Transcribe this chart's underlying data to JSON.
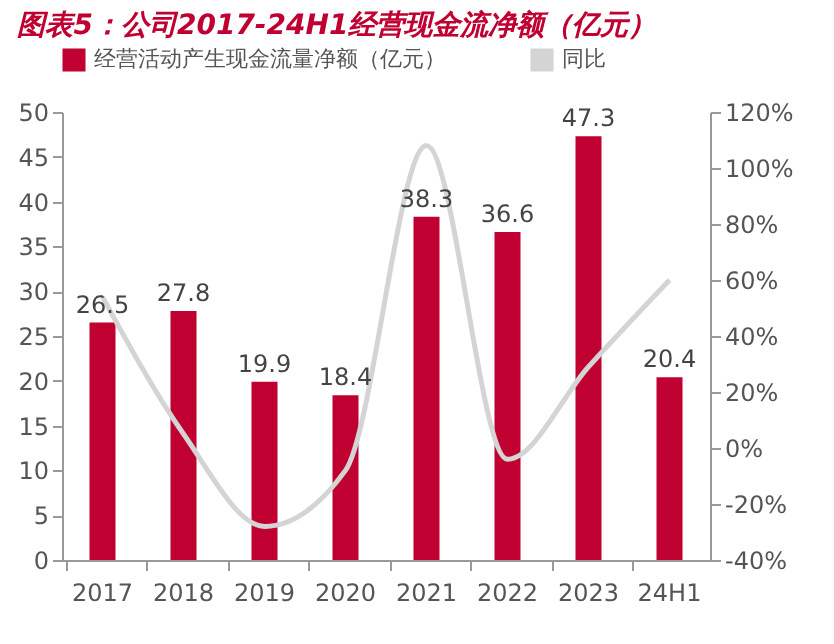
{
  "chart_data": {
    "type": "bar",
    "title": "图表5：公司2017-24H1经营现金流净额（亿元）",
    "categories": [
      "2017",
      "2018",
      "2019",
      "2020",
      "2021",
      "2022",
      "2023",
      "24H1"
    ],
    "series": [
      {
        "name": "经营活动产生现金流量净额（亿元）",
        "color": "#c00030",
        "values": [
          26.5,
          27.8,
          19.9,
          18.4,
          38.3,
          36.6,
          47.3,
          20.4
        ],
        "value_labels": [
          "26.5",
          "27.8",
          "19.9",
          "18.4",
          "38.3",
          "36.6",
          "47.3",
          "20.4"
        ]
      },
      {
        "name": "同比",
        "type": "line",
        "axis": "y2",
        "color": "#d4d4d4",
        "values": [
          54,
          5,
          -28,
          -8,
          108,
          -4,
          29,
          60
        ]
      }
    ],
    "ylim": [
      0,
      50
    ],
    "yticks": [
      0,
      5,
      10,
      15,
      20,
      25,
      30,
      35,
      40,
      45,
      50
    ],
    "y2lim": [
      -40,
      120
    ],
    "y2ticks": [
      {
        "value": -40,
        "label": "-40%"
      },
      {
        "value": -20,
        "label": "-20%"
      },
      {
        "value": 0,
        "label": "0%"
      },
      {
        "value": 20,
        "label": "20%"
      },
      {
        "value": 40,
        "label": "40%"
      },
      {
        "value": 60,
        "label": "60%"
      },
      {
        "value": 80,
        "label": "80%"
      },
      {
        "value": 100,
        "label": "100%"
      },
      {
        "value": 120,
        "label": "120%"
      }
    ],
    "grid": false,
    "legend": "top",
    "marker": "none",
    "line_style": "solid"
  }
}
